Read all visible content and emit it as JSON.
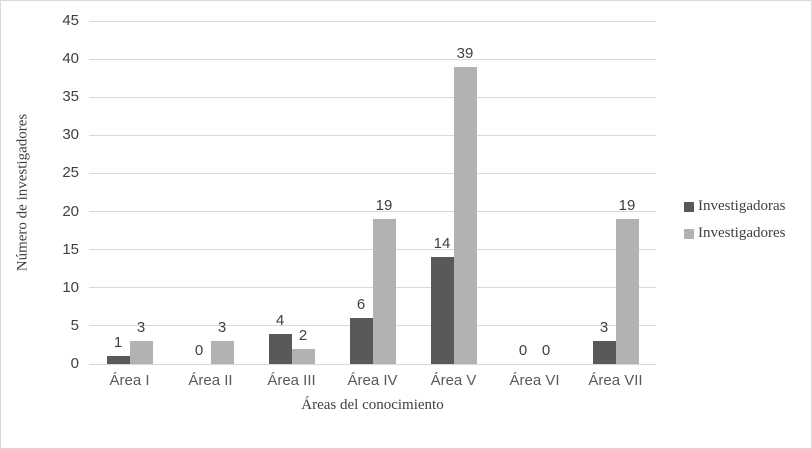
{
  "chart_data": {
    "type": "bar",
    "title": "",
    "xlabel": "Áreas del conocimiento",
    "ylabel": "Número de investigadores",
    "categories": [
      "Área I",
      "Área II",
      "Área III",
      "Área IV",
      "Área V",
      "Área VI",
      "Área VII"
    ],
    "series": [
      {
        "name": "Investigadoras",
        "color": "#595959",
        "values": [
          1,
          0,
          4,
          6,
          14,
          0,
          3
        ]
      },
      {
        "name": "Investigadores",
        "color": "#b2b2b2",
        "values": [
          3,
          3,
          2,
          19,
          39,
          0,
          19
        ]
      }
    ],
    "ylim": [
      0,
      45
    ],
    "yticks": [
      0,
      5,
      10,
      15,
      20,
      25,
      30,
      35,
      40,
      45
    ],
    "grid": "horizontal",
    "legend_position": "right"
  },
  "colors": {
    "gridline": "#d9d9d9",
    "frame_border": "#d9d9d9",
    "tick_text": "#404040",
    "category_text": "#595959",
    "data_label_text": "#404040"
  }
}
